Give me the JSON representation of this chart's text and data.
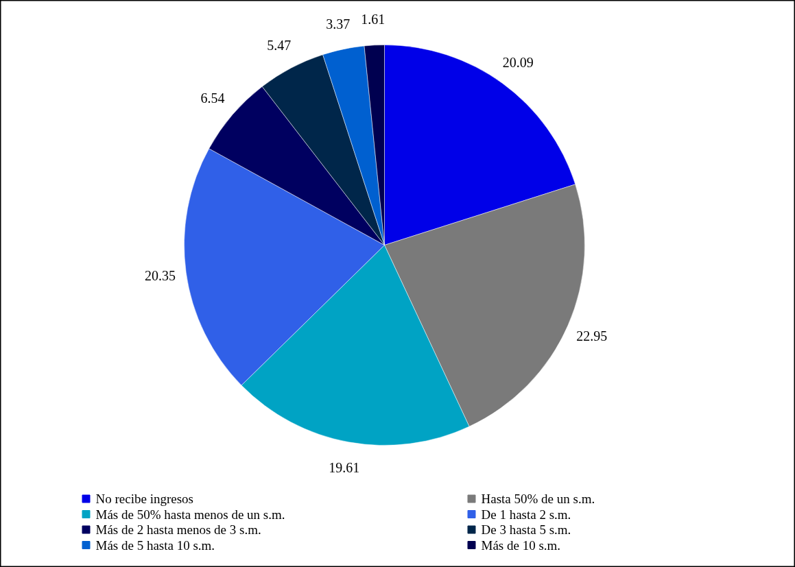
{
  "chart_data": {
    "type": "pie",
    "categories": [
      "No recibe ingresos",
      "Hasta 50% de un s.m.",
      "Más de 50% hasta menos de un s.m.",
      "De 1 hasta 2 s.m.",
      "Más de 2 hasta menos de 3 s.m.",
      "De 3 hasta 5 s.m.",
      "Más de 5 hasta 10 s.m.",
      "Más de 10 s.m."
    ],
    "values": [
      20.09,
      22.95,
      19.61,
      20.35,
      6.54,
      5.47,
      3.37,
      1.61
    ],
    "colors": [
      "#0000e8",
      "#7a7a7a",
      "#00a3c4",
      "#3060e8",
      "#000060",
      "#00264a",
      "#0060d0",
      "#000050"
    ],
    "data_labels": true,
    "legend": "bottom"
  }
}
